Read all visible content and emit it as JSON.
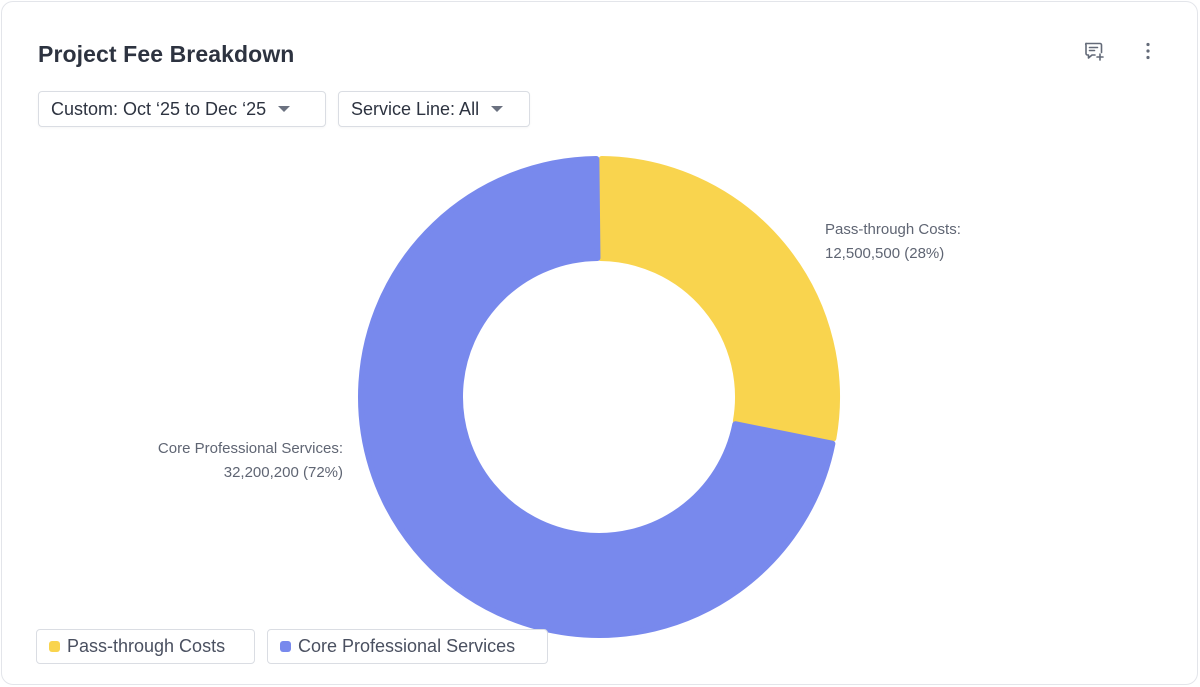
{
  "widget": {
    "title": "Project Fee Breakdown",
    "comment_icon": "comment-add-icon",
    "more_icon": "more-vertical-icon"
  },
  "filters": {
    "date_label": "Custom: Oct ‘25 to Dec ‘25",
    "service_label": "Service Line: All",
    "caret_icon": "caret-down-icon"
  },
  "colors": {
    "pass_through": "#f9d44e",
    "core": "#7889ed",
    "label_text": "#5f6573"
  },
  "chart_data": {
    "type": "pie",
    "variant": "donut",
    "title": "Project Fee Breakdown",
    "slices": [
      {
        "name": "Pass-through Costs",
        "value": 12500500,
        "label_line1": "Pass-through Costs:",
        "label_line2": "12,500,500 (28%)",
        "color": "#f9d44e"
      },
      {
        "name": "Core Professional Services",
        "value": 32200200,
        "label_line1": "Core Professional Services:",
        "label_line2": "32,200,200 (72%)",
        "color": "#7889ed"
      }
    ],
    "legend": [
      "Pass-through Costs",
      "Core Professional Services"
    ],
    "legend_position": "bottom-left"
  }
}
